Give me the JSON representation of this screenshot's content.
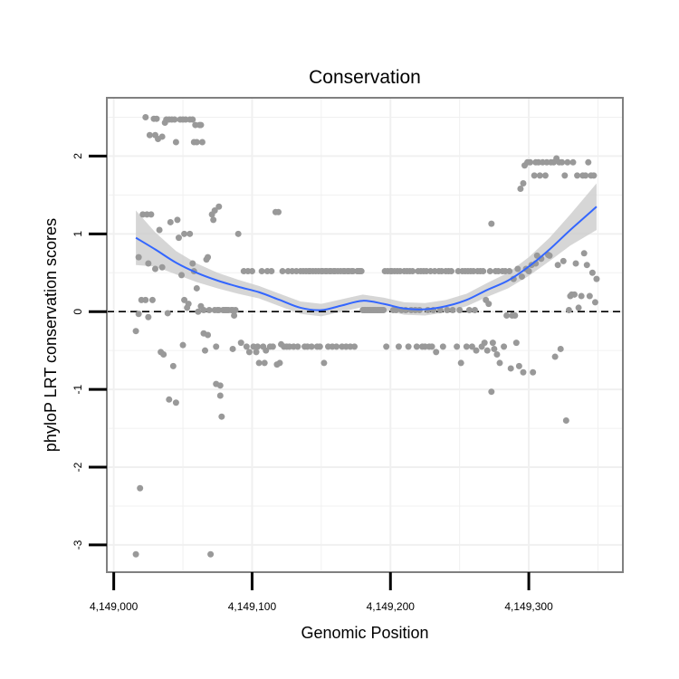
{
  "chart_data": {
    "type": "scatter",
    "title": "Conservation",
    "xlabel": "Genomic Position",
    "ylabel": "phyloP LRT conservation scores",
    "xlim": [
      4148995,
      4149368
    ],
    "ylim": [
      -3.35,
      2.75
    ],
    "x_ticks": [
      4149000,
      4149100,
      4149200,
      4149300
    ],
    "x_tick_labels": [
      "4,149,000",
      "4,149,100",
      "4,149,200",
      "4,149,300"
    ],
    "y_ticks": [
      -3,
      -2,
      -1,
      0,
      1,
      2
    ],
    "y_tick_labels": [
      "-3",
      "-2",
      "-1",
      "0",
      "1",
      "2"
    ],
    "grid": true,
    "reference_line": {
      "y": 0,
      "style": "dashed"
    },
    "colors": {
      "points": "#999999",
      "smooth_line": "#3366ff",
      "ribbon": "#cccccc",
      "panel_border": "#808080",
      "grid": "#f0f0f0"
    },
    "points": [
      [
        4149016,
        -0.25
      ],
      [
        4149016,
        -3.12
      ],
      [
        4149018,
        0.7
      ],
      [
        4149018,
        -0.03
      ],
      [
        4149019,
        -2.27
      ],
      [
        4149020,
        0.15
      ],
      [
        4149021,
        1.25
      ],
      [
        4149023,
        0.15
      ],
      [
        4149023,
        2.5
      ],
      [
        4149024,
        1.25
      ],
      [
        4149025,
        -0.07
      ],
      [
        4149025,
        0.62
      ],
      [
        4149026,
        2.27
      ],
      [
        4149027,
        1.25
      ],
      [
        4149028,
        0.15
      ],
      [
        4149029,
        2.48
      ],
      [
        4149030,
        2.27
      ],
      [
        4149030,
        0.55
      ],
      [
        4149031,
        2.48
      ],
      [
        4149032,
        2.22
      ],
      [
        4149033,
        1.05
      ],
      [
        4149034,
        -0.52
      ],
      [
        4149035,
        2.25
      ],
      [
        4149035,
        0.57
      ],
      [
        4149036,
        -0.55
      ],
      [
        4149037,
        2.43
      ],
      [
        4149038,
        2.47
      ],
      [
        4149039,
        -0.02
      ],
      [
        4149040,
        2.47
      ],
      [
        4149040,
        -1.13
      ],
      [
        4149041,
        1.15
      ],
      [
        4149042,
        2.47
      ],
      [
        4149043,
        -0.7
      ],
      [
        4149044,
        2.47
      ],
      [
        4149045,
        2.18
      ],
      [
        4149045,
        -1.17
      ],
      [
        4149046,
        1.18
      ],
      [
        4149047,
        0.95
      ],
      [
        4149048,
        2.47
      ],
      [
        4149049,
        0.47
      ],
      [
        4149050,
        2.47
      ],
      [
        4149050,
        -0.43
      ],
      [
        4149051,
        1.0
      ],
      [
        4149051,
        0.15
      ],
      [
        4149052,
        2.47
      ],
      [
        4149053,
        0.05
      ],
      [
        4149054,
        0.1
      ],
      [
        4149055,
        2.47
      ],
      [
        4149055,
        1.0
      ],
      [
        4149057,
        2.47
      ],
      [
        4149057,
        0.62
      ],
      [
        4149058,
        2.18
      ],
      [
        4149058,
        0.52
      ],
      [
        4149059,
        2.4
      ],
      [
        4149060,
        2.18
      ],
      [
        4149060,
        0.3
      ],
      [
        4149061,
        0.0
      ],
      [
        4149062,
        2.4
      ],
      [
        4149063,
        2.4
      ],
      [
        4149063,
        0.07
      ],
      [
        4149064,
        2.18
      ],
      [
        4149065,
        0.02
      ],
      [
        4149065,
        -0.28
      ],
      [
        4149066,
        -0.5
      ],
      [
        4149067,
        0.67
      ],
      [
        4149068,
        -0.3
      ],
      [
        4149068,
        0.7
      ],
      [
        4149069,
        0.02
      ],
      [
        4149070,
        -3.12
      ],
      [
        4149071,
        1.25
      ],
      [
        4149072,
        1.18
      ],
      [
        4149073,
        0.02
      ],
      [
        4149073,
        1.3
      ],
      [
        4149074,
        -0.45
      ],
      [
        4149074,
        -0.93
      ],
      [
        4149075,
        0.02
      ],
      [
        4149076,
        0.02
      ],
      [
        4149076,
        1.35
      ],
      [
        4149077,
        -0.95
      ],
      [
        4149077,
        -1.08
      ],
      [
        4149078,
        -1.35
      ],
      [
        4149079,
        0.02
      ],
      [
        4149080,
        0.02
      ],
      [
        4149081,
        0.02
      ],
      [
        4149082,
        0.02
      ],
      [
        4149083,
        0.02
      ],
      [
        4149085,
        0.02
      ],
      [
        4149086,
        0.02
      ],
      [
        4149086,
        -0.48
      ],
      [
        4149087,
        -0.05
      ],
      [
        4149088,
        0.02
      ],
      [
        4149090,
        1.0
      ],
      [
        4149092,
        -0.4
      ],
      [
        4149094,
        0.52
      ],
      [
        4149096,
        -0.45
      ],
      [
        4149097,
        0.52
      ],
      [
        4149098,
        -0.52
      ],
      [
        4149100,
        0.52
      ],
      [
        4149101,
        -0.45
      ],
      [
        4149103,
        -0.52
      ],
      [
        4149104,
        -0.45
      ],
      [
        4149105,
        -0.66
      ],
      [
        4149107,
        0.52
      ],
      [
        4149108,
        -0.45
      ],
      [
        4149109,
        -0.66
      ],
      [
        4149110,
        -0.5
      ],
      [
        4149111,
        0.52
      ],
      [
        4149113,
        -0.45
      ],
      [
        4149114,
        0.52
      ],
      [
        4149115,
        -0.45
      ],
      [
        4149117,
        1.28
      ],
      [
        4149118,
        -0.68
      ],
      [
        4149119,
        1.28
      ],
      [
        4149120,
        -0.66
      ],
      [
        4149121,
        -0.42
      ],
      [
        4149122,
        0.52
      ],
      [
        4149123,
        -0.45
      ],
      [
        4149125,
        -0.45
      ],
      [
        4149126,
        0.52
      ],
      [
        4149127,
        -0.45
      ],
      [
        4149129,
        0.52
      ],
      [
        4149130,
        -0.45
      ],
      [
        4149132,
        0.52
      ],
      [
        4149133,
        -0.45
      ],
      [
        4149135,
        0.52
      ],
      [
        4149137,
        0.52
      ],
      [
        4149138,
        -0.45
      ],
      [
        4149139,
        0.52
      ],
      [
        4149140,
        -0.45
      ],
      [
        4149141,
        0.52
      ],
      [
        4149142,
        0.52
      ],
      [
        4149143,
        -0.45
      ],
      [
        4149144,
        0.52
      ],
      [
        4149146,
        0.52
      ],
      [
        4149147,
        -0.45
      ],
      [
        4149148,
        0.52
      ],
      [
        4149149,
        -0.45
      ],
      [
        4149150,
        0.52
      ],
      [
        4149151,
        0.52
      ],
      [
        4149152,
        -0.66
      ],
      [
        4149153,
        0.52
      ],
      [
        4149154,
        0.52
      ],
      [
        4149155,
        -0.45
      ],
      [
        4149156,
        0.52
      ],
      [
        4149157,
        0.52
      ],
      [
        4149158,
        -0.45
      ],
      [
        4149159,
        0.52
      ],
      [
        4149160,
        0.52
      ],
      [
        4149161,
        -0.45
      ],
      [
        4149162,
        0.52
      ],
      [
        4149164,
        0.52
      ],
      [
        4149165,
        -0.45
      ],
      [
        4149166,
        0.52
      ],
      [
        4149167,
        0.52
      ],
      [
        4149168,
        -0.45
      ],
      [
        4149169,
        0.52
      ],
      [
        4149170,
        0.52
      ],
      [
        4149171,
        -0.45
      ],
      [
        4149172,
        0.52
      ],
      [
        4149173,
        0.52
      ],
      [
        4149174,
        -0.45
      ],
      [
        4149176,
        0.52
      ],
      [
        4149177,
        0.52
      ],
      [
        4149178,
        0.52
      ],
      [
        4149179,
        0.52
      ],
      [
        4149180,
        0.02
      ],
      [
        4149181,
        0.02
      ],
      [
        4149182,
        0.02
      ],
      [
        4149183,
        0.02
      ],
      [
        4149184,
        0.02
      ],
      [
        4149185,
        0.02
      ],
      [
        4149186,
        0.02
      ],
      [
        4149187,
        0.02
      ],
      [
        4149188,
        0.02
      ],
      [
        4149189,
        0.02
      ],
      [
        4149190,
        0.02
      ],
      [
        4149191,
        0.02
      ],
      [
        4149192,
        0.02
      ],
      [
        4149193,
        0.02
      ],
      [
        4149194,
        0.02
      ],
      [
        4149195,
        0.02
      ],
      [
        4149196,
        0.52
      ],
      [
        4149197,
        -0.45
      ],
      [
        4149198,
        0.52
      ],
      [
        4149200,
        0.52
      ],
      [
        4149201,
        0.52
      ],
      [
        4149202,
        0.02
      ],
      [
        4149203,
        0.52
      ],
      [
        4149204,
        0.02
      ],
      [
        4149205,
        0.52
      ],
      [
        4149206,
        -0.45
      ],
      [
        4149207,
        0.52
      ],
      [
        4149208,
        0.02
      ],
      [
        4149210,
        0.52
      ],
      [
        4149211,
        0.02
      ],
      [
        4149212,
        0.52
      ],
      [
        4149213,
        -0.45
      ],
      [
        4149214,
        0.52
      ],
      [
        4149215,
        0.02
      ],
      [
        4149216,
        0.52
      ],
      [
        4149218,
        0.02
      ],
      [
        4149219,
        -0.45
      ],
      [
        4149220,
        0.52
      ],
      [
        4149221,
        0.02
      ],
      [
        4149222,
        0.52
      ],
      [
        4149223,
        -0.45
      ],
      [
        4149224,
        0.52
      ],
      [
        4149225,
        -0.45
      ],
      [
        4149226,
        0.52
      ],
      [
        4149227,
        0.02
      ],
      [
        4149228,
        -0.45
      ],
      [
        4149229,
        0.52
      ],
      [
        4149230,
        -0.45
      ],
      [
        4149231,
        0.02
      ],
      [
        4149232,
        0.52
      ],
      [
        4149233,
        -0.52
      ],
      [
        4149235,
        0.52
      ],
      [
        4149236,
        0.02
      ],
      [
        4149237,
        0.52
      ],
      [
        4149238,
        -0.45
      ],
      [
        4149240,
        0.52
      ],
      [
        4149241,
        0.02
      ],
      [
        4149242,
        0.52
      ],
      [
        4149244,
        0.52
      ],
      [
        4149245,
        0.02
      ],
      [
        4149248,
        -0.45
      ],
      [
        4149249,
        0.52
      ],
      [
        4149250,
        0.02
      ],
      [
        4149251,
        -0.66
      ],
      [
        4149252,
        0.52
      ],
      [
        4149254,
        0.52
      ],
      [
        4149255,
        -0.45
      ],
      [
        4149256,
        0.52
      ],
      [
        4149257,
        0.02
      ],
      [
        4149258,
        0.52
      ],
      [
        4149259,
        -0.45
      ],
      [
        4149260,
        0.52
      ],
      [
        4149261,
        0.02
      ],
      [
        4149262,
        -0.5
      ],
      [
        4149263,
        0.52
      ],
      [
        4149265,
        0.52
      ],
      [
        4149266,
        -0.45
      ],
      [
        4149267,
        0.52
      ],
      [
        4149268,
        -0.4
      ],
      [
        4149269,
        0.15
      ],
      [
        4149270,
        -0.5
      ],
      [
        4149271,
        0.1
      ],
      [
        4149272,
        0.52
      ],
      [
        4149273,
        1.13
      ],
      [
        4149273,
        -1.03
      ],
      [
        4149274,
        -0.4
      ],
      [
        4149275,
        -0.48
      ],
      [
        4149276,
        0.52
      ],
      [
        4149277,
        -0.55
      ],
      [
        4149278,
        0.52
      ],
      [
        4149279,
        -0.66
      ],
      [
        4149281,
        0.52
      ],
      [
        4149282,
        -0.45
      ],
      [
        4149283,
        0.52
      ],
      [
        4149284,
        -0.05
      ],
      [
        4149286,
        0.52
      ],
      [
        4149287,
        -0.73
      ],
      [
        4149288,
        -0.05
      ],
      [
        4149289,
        0.42
      ],
      [
        4149290,
        -0.05
      ],
      [
        4149291,
        -0.4
      ],
      [
        4149292,
        0.55
      ],
      [
        4149293,
        -0.7
      ],
      [
        4149294,
        1.58
      ],
      [
        4149295,
        0.45
      ],
      [
        4149296,
        1.65
      ],
      [
        4149296,
        -0.78
      ],
      [
        4149297,
        1.88
      ],
      [
        4149298,
        0.55
      ],
      [
        4149299,
        1.92
      ],
      [
        4149300,
        0.52
      ],
      [
        4149301,
        1.92
      ],
      [
        4149302,
        0.6
      ],
      [
        4149303,
        -0.78
      ],
      [
        4149304,
        1.75
      ],
      [
        4149305,
        1.92
      ],
      [
        4149305,
        0.62
      ],
      [
        4149306,
        0.72
      ],
      [
        4149307,
        1.92
      ],
      [
        4149308,
        1.75
      ],
      [
        4149309,
        0.68
      ],
      [
        4149310,
        1.92
      ],
      [
        4149312,
        1.75
      ],
      [
        4149313,
        1.92
      ],
      [
        4149314,
        0.73
      ],
      [
        4149315,
        0.72
      ],
      [
        4149316,
        1.92
      ],
      [
        4149318,
        1.92
      ],
      [
        4149319,
        -0.58
      ],
      [
        4149320,
        1.97
      ],
      [
        4149321,
        0.6
      ],
      [
        4149322,
        1.92
      ],
      [
        4149323,
        -0.48
      ],
      [
        4149324,
        1.92
      ],
      [
        4149325,
        0.65
      ],
      [
        4149326,
        1.75
      ],
      [
        4149327,
        -1.4
      ],
      [
        4149328,
        1.92
      ],
      [
        4149329,
        0.02
      ],
      [
        4149330,
        0.2
      ],
      [
        4149331,
        0.22
      ],
      [
        4149332,
        1.92
      ],
      [
        4149333,
        0.22
      ],
      [
        4149334,
        0.62
      ],
      [
        4149335,
        1.75
      ],
      [
        4149336,
        0.05
      ],
      [
        4149338,
        0.2
      ],
      [
        4149339,
        1.75
      ],
      [
        4149340,
        0.75
      ],
      [
        4149341,
        1.75
      ],
      [
        4149342,
        0.6
      ],
      [
        4149343,
        1.92
      ],
      [
        4149344,
        0.2
      ],
      [
        4149345,
        1.75
      ],
      [
        4149346,
        0.5
      ],
      [
        4149347,
        1.75
      ],
      [
        4149348,
        0.12
      ],
      [
        4149349,
        0.42
      ]
    ],
    "smooth_fit": {
      "x": [
        4149016,
        4149030,
        4149045,
        4149060,
        4149075,
        4149090,
        4149105,
        4149120,
        4149135,
        4149150,
        4149165,
        4149180,
        4149195,
        4149210,
        4149225,
        4149240,
        4149255,
        4149270,
        4149285,
        4149300,
        4149315,
        4149330,
        4149349
      ],
      "y": [
        0.95,
        0.8,
        0.63,
        0.5,
        0.4,
        0.32,
        0.25,
        0.15,
        0.05,
        0.02,
        0.08,
        0.14,
        0.1,
        0.04,
        0.03,
        0.07,
        0.15,
        0.28,
        0.4,
        0.58,
        0.8,
        1.05,
        1.35
      ],
      "se": [
        0.35,
        0.22,
        0.15,
        0.12,
        0.1,
        0.09,
        0.08,
        0.08,
        0.08,
        0.08,
        0.08,
        0.08,
        0.08,
        0.08,
        0.08,
        0.08,
        0.08,
        0.09,
        0.1,
        0.12,
        0.15,
        0.2,
        0.3
      ]
    }
  }
}
